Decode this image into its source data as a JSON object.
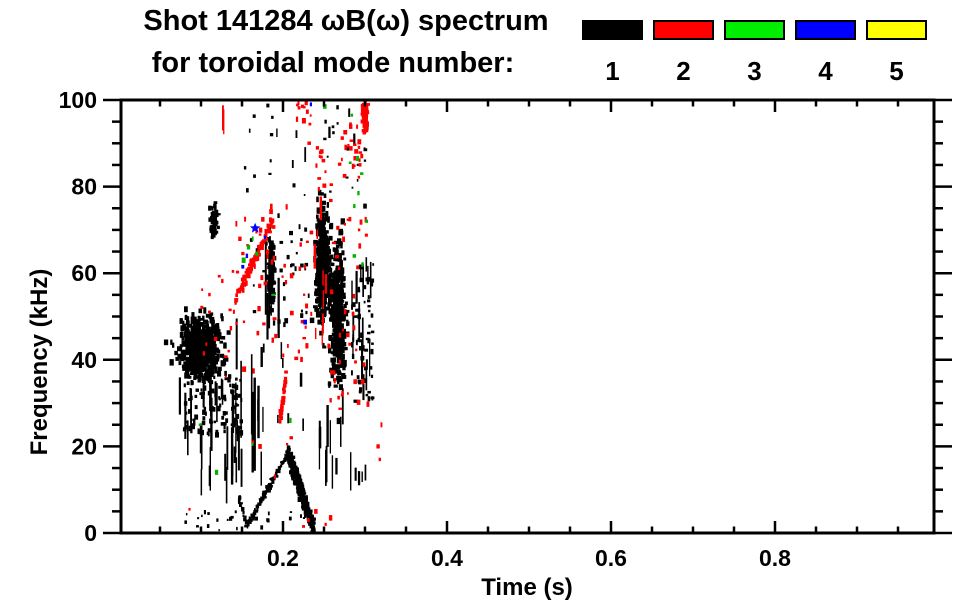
{
  "title": {
    "line1": "Shot 141284 ωB(ω) spectrum",
    "line2": "for toroidal mode number:"
  },
  "legend": {
    "items": [
      {
        "label": "1",
        "color": "#000000"
      },
      {
        "label": "2",
        "color": "#FF0000"
      },
      {
        "label": "3",
        "color": "#00EE00"
      },
      {
        "label": "4",
        "color": "#0000FF"
      },
      {
        "label": "5",
        "color": "#FFFF00"
      }
    ]
  },
  "axes": {
    "x": {
      "label": "Time (s)",
      "range": [
        0,
        0.993
      ],
      "minor_step": 0.05,
      "ticks": [
        {
          "v": 0.2,
          "label": "0.2"
        },
        {
          "v": 0.4,
          "label": "0.4"
        },
        {
          "v": 0.6,
          "label": "0.6"
        },
        {
          "v": 0.8,
          "label": "0.8"
        }
      ]
    },
    "y": {
      "label": "Frequency (kHz)",
      "range": [
        0,
        100
      ],
      "minor_step": 5,
      "ticks": [
        {
          "v": 0,
          "label": "0"
        },
        {
          "v": 20,
          "label": "20"
        },
        {
          "v": 40,
          "label": "40"
        },
        {
          "v": 60,
          "label": "60"
        },
        {
          "v": 80,
          "label": "80"
        },
        {
          "v": 100,
          "label": "100"
        }
      ]
    }
  },
  "chart_data": {
    "type": "scatter",
    "title": "Shot 141284 ωB(ω) spectrum for toroidal mode number:",
    "xlabel": "Time (s)",
    "ylabel": "Frequency (kHz)",
    "xlim": [
      0,
      0.993
    ],
    "ylim": [
      0,
      100
    ],
    "grid": false,
    "legend_position": "top-right",
    "units": {
      "t": "s",
      "f": "kHz"
    },
    "series": [
      {
        "name": "1",
        "mode": 1,
        "color": "#000000",
        "clusters": [
          {
            "kind": "blob",
            "t": 0.1,
            "f": 43,
            "rt": 0.023,
            "rf": 6.5,
            "n": 650,
            "s": 3
          },
          {
            "kind": "blob",
            "t": 0.116,
            "f": 72,
            "rt": 0.005,
            "rf": 3.5,
            "n": 70,
            "s": 2.5
          },
          {
            "kind": "vlines",
            "t0": 0.073,
            "t1": 0.15,
            "f0": 6,
            "f1": 38,
            "nl": 26,
            "l0": 2,
            "l1": 13
          },
          {
            "kind": "box",
            "t0": 0.08,
            "t1": 0.15,
            "f0": 22,
            "f1": 37,
            "n": 120,
            "s": 2.5
          },
          {
            "kind": "vlines",
            "t0": 0.125,
            "t1": 0.178,
            "f0": 5,
            "f1": 58,
            "nl": 13,
            "l0": 3,
            "l1": 22
          },
          {
            "kind": "vlines",
            "t0": 0.178,
            "t1": 0.196,
            "f0": 30,
            "f1": 70,
            "nl": 7,
            "l0": 6,
            "l1": 22
          },
          {
            "kind": "blob",
            "t": 0.186,
            "f": 60,
            "rt": 0.004,
            "rf": 8,
            "n": 120,
            "s": 2.5
          },
          {
            "kind": "seg",
            "t0": 0.145,
            "f0": 9,
            "t1": 0.156,
            "f1": 1.5,
            "w": 0.6,
            "n": 30,
            "s": 2
          },
          {
            "kind": "seg",
            "t0": 0.156,
            "f0": 1.5,
            "t1": 0.206,
            "f1": 18.5,
            "w": 0.6,
            "n": 110,
            "s": 2
          },
          {
            "kind": "seg",
            "t0": 0.206,
            "f0": 18.5,
            "t1": 0.238,
            "f1": 0.5,
            "w": 1.5,
            "n": 330,
            "s": 2.5
          },
          {
            "kind": "blob",
            "t": 0.248,
            "f": 62,
            "rt": 0.008,
            "rf": 12,
            "n": 420,
            "s": 3
          },
          {
            "kind": "blob",
            "t": 0.267,
            "f": 50,
            "rt": 0.009,
            "rf": 15,
            "n": 420,
            "s": 3
          },
          {
            "kind": "vlines",
            "t0": 0.24,
            "t1": 0.285,
            "f0": 8,
            "f1": 35,
            "nl": 12,
            "l0": 2,
            "l1": 10
          },
          {
            "kind": "vlines",
            "t0": 0.278,
            "t1": 0.308,
            "f0": 25,
            "f1": 66,
            "nl": 16,
            "l0": 2,
            "l1": 9
          },
          {
            "kind": "box",
            "t0": 0.282,
            "t1": 0.31,
            "f0": 30,
            "f1": 62,
            "n": 60,
            "s": 2.5
          },
          {
            "kind": "box",
            "t0": 0.13,
            "t1": 0.31,
            "f0": 78,
            "f1": 99,
            "n": 22,
            "s": 2
          },
          {
            "kind": "vlines",
            "t0": 0.18,
            "t1": 0.31,
            "f0": 80,
            "f1": 99,
            "nl": 7,
            "l0": 1.5,
            "l1": 4
          },
          {
            "kind": "vlines",
            "t0": 0.288,
            "t1": 0.301,
            "f0": 8,
            "f1": 16,
            "nl": 4,
            "l0": 2,
            "l1": 5
          },
          {
            "kind": "box",
            "t0": 0.08,
            "t1": 0.24,
            "f0": 0.5,
            "f1": 5,
            "n": 26,
            "s": 2
          },
          {
            "kind": "vlines",
            "t0": 0.15,
            "t1": 0.235,
            "f0": 20,
            "f1": 48,
            "nl": 10,
            "l0": 1.5,
            "l1": 6
          },
          {
            "kind": "box",
            "t0": 0.16,
            "t1": 0.235,
            "f0": 48,
            "f1": 75,
            "n": 36,
            "s": 2.5
          },
          {
            "kind": "points",
            "pts": [
              [
                0.3,
                86
              ],
              [
                0.3005,
                88.5
              ],
              [
                0.251,
                91
              ],
              [
                0.252,
                95
              ],
              [
                0.186,
                92
              ],
              [
                0.187,
                96
              ],
              [
                0.3,
                75.5
              ],
              [
                0.31,
                62
              ]
            ],
            "s": 2.5
          }
        ]
      },
      {
        "name": "2",
        "mode": 2,
        "color": "#FF0000",
        "clusters": [
          {
            "kind": "seg",
            "t0": 0.142,
            "f0": 54,
            "t1": 0.19,
            "f1": 73,
            "w": 1.0,
            "n": 90,
            "s": 2.5
          },
          {
            "kind": "vlines",
            "t0": 0.1262,
            "t1": 0.128,
            "f0": 92,
            "f1": 100,
            "nl": 2,
            "l0": 4,
            "l1": 7
          },
          {
            "kind": "blob",
            "t": 0.3,
            "f": 96.5,
            "rt": 0.0035,
            "rf": 3,
            "n": 90,
            "s": 2.5
          },
          {
            "kind": "box",
            "t0": 0.268,
            "t1": 0.298,
            "f0": 82,
            "f1": 95,
            "n": 24,
            "s": 2.5
          },
          {
            "kind": "vlines",
            "t0": 0.238,
            "t1": 0.254,
            "f0": 40,
            "f1": 78,
            "nl": 10,
            "l0": 2,
            "l1": 8
          },
          {
            "kind": "box",
            "t0": 0.24,
            "t1": 0.26,
            "f0": 78,
            "f1": 90,
            "n": 12,
            "s": 2.5
          },
          {
            "kind": "seg",
            "t0": 0.196,
            "f0": 26,
            "t1": 0.204,
            "f1": 36,
            "w": 0.9,
            "n": 45,
            "s": 2.5
          },
          {
            "kind": "box",
            "t0": 0.1,
            "t1": 0.165,
            "f0": 36,
            "f1": 60,
            "n": 22,
            "s": 2.5
          },
          {
            "kind": "box",
            "t0": 0.165,
            "t1": 0.235,
            "f0": 40,
            "f1": 76,
            "n": 40,
            "s": 2.5
          },
          {
            "kind": "box",
            "t0": 0.255,
            "t1": 0.306,
            "f0": 28,
            "f1": 78,
            "n": 42,
            "s": 2.5
          },
          {
            "kind": "box",
            "t0": 0.208,
            "t1": 0.235,
            "f0": 90,
            "f1": 100,
            "n": 12,
            "s": 2.5
          },
          {
            "kind": "box",
            "t0": 0.13,
            "t1": 0.19,
            "f0": 60,
            "f1": 75,
            "n": 14,
            "s": 2.5
          },
          {
            "kind": "points",
            "pts": [
              [
                0.086,
                5.5
              ],
              [
                0.205,
                20.5
              ],
              [
                0.21,
                22
              ],
              [
                0.225,
                1.5
              ],
              [
                0.231,
                3
              ],
              [
                0.252,
                2
              ],
              [
                0.19,
                13
              ],
              [
                0.172,
                20
              ],
              [
                0.24,
                5
              ],
              [
                0.258,
                3.5
              ],
              [
                0.163,
                21
              ],
              [
                0.318,
                17
              ],
              [
                0.32,
                25
              ],
              [
                0.316,
                20
              ]
            ],
            "s": 2.5
          }
        ]
      },
      {
        "name": "3",
        "mode": 3,
        "color": "#00B400",
        "clusters": [
          {
            "kind": "points",
            "pts": [
              [
                0.251,
                98.5
              ],
              [
                0.284,
                96.5
              ],
              [
                0.291,
                86.5
              ],
              [
                0.296,
                83
              ],
              [
                0.282,
                85.5
              ],
              [
                0.292,
                78.5
              ],
              [
                0.287,
                75.5
              ],
              [
                0.297,
                62
              ],
              [
                0.287,
                64
              ],
              [
                0.163,
                68
              ],
              [
                0.158,
                66
              ],
              [
                0.152,
                63
              ],
              [
                0.168,
                64.5
              ],
              [
                0.188,
                55
              ],
              [
                0.209,
                26
              ],
              [
                0.099,
                25
              ],
              [
                0.163,
                20.5
              ],
              [
                0.119,
                14
              ],
              [
                0.302,
                72
              ]
            ],
            "s": 2.5
          }
        ]
      },
      {
        "name": "4",
        "mode": 4,
        "color": "#0000FF",
        "clusters": [
          {
            "kind": "star",
            "t": 0.166,
            "f": 70.4,
            "r": 5.5
          },
          {
            "kind": "points",
            "pts": [
              [
                0.178,
                68.3
              ],
              [
                0.156,
                64
              ],
              [
                0.151,
                61.5
              ],
              [
                0.227,
                48.7
              ],
              [
                0.234,
                99
              ]
            ],
            "s": 2.5
          }
        ]
      },
      {
        "name": "5",
        "mode": 5,
        "color": "#FFFF00",
        "clusters": []
      }
    ]
  }
}
